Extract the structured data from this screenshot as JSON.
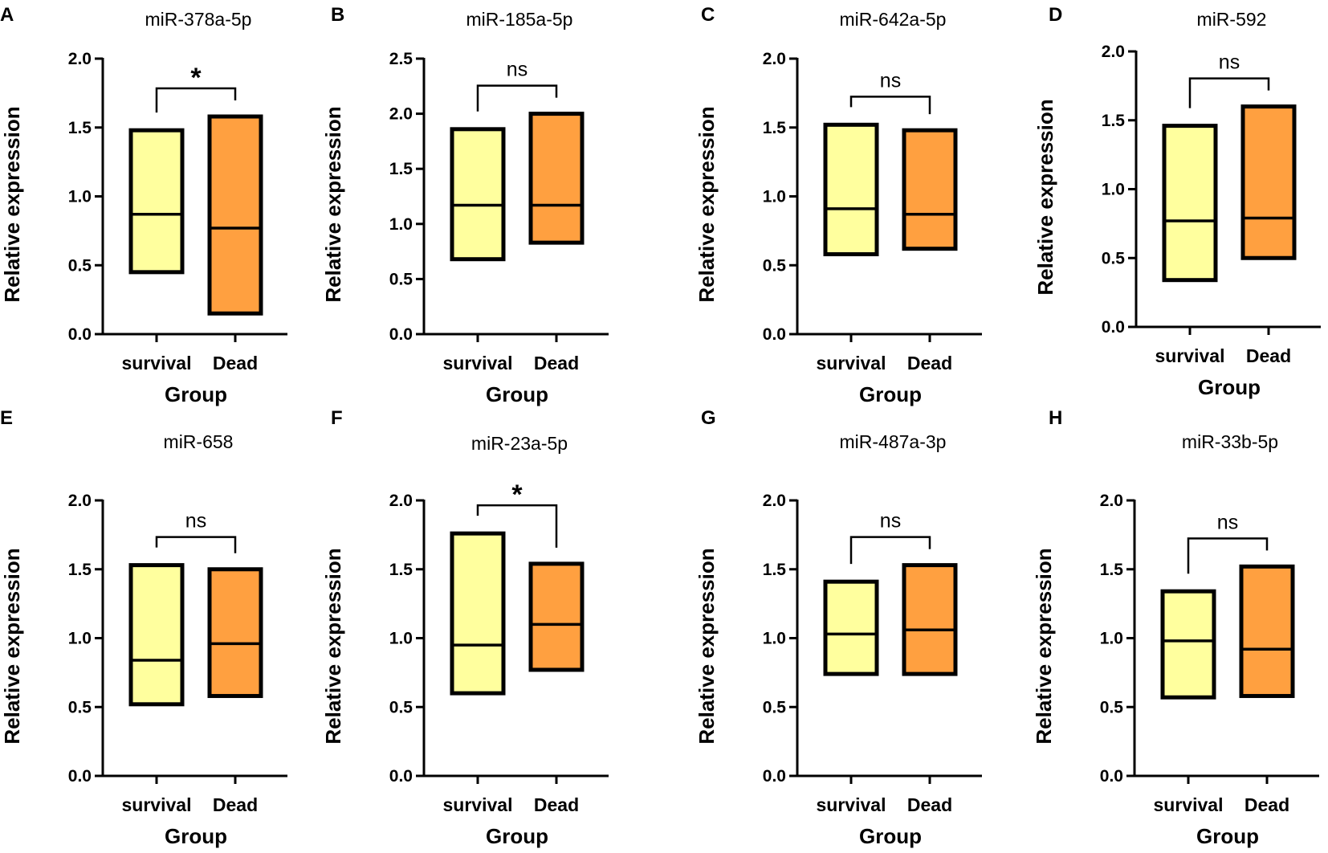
{
  "figure": {
    "colors": {
      "survival": "#FFFF9E",
      "dead": "#FFA040",
      "stroke": "#000000"
    }
  },
  "chart_data": [
    {
      "panel": "A",
      "type": "box",
      "title": "miR-378a-5p",
      "xlabel": "Group",
      "ylabel": "Relative expression",
      "categories": [
        "survival",
        "Dead"
      ],
      "ylim": [
        0,
        2.0
      ],
      "yticks": [
        "0.0",
        "0.5",
        "1.0",
        "1.5",
        "2.0"
      ],
      "series": [
        {
          "name": "survival",
          "min": 0.45,
          "median": 0.87,
          "max": 1.48
        },
        {
          "name": "Dead",
          "min": 0.15,
          "median": 0.77,
          "max": 1.58
        }
      ],
      "significance": "*"
    },
    {
      "panel": "B",
      "type": "box",
      "title": "miR-185a-5p",
      "xlabel": "Group",
      "ylabel": "Relative expression",
      "categories": [
        "survival",
        "Dead"
      ],
      "ylim": [
        0,
        2.5
      ],
      "yticks": [
        "0.0",
        "0.5",
        "1.0",
        "1.5",
        "2.0",
        "2.5"
      ],
      "series": [
        {
          "name": "survival",
          "min": 0.68,
          "median": 1.17,
          "max": 1.86
        },
        {
          "name": "Dead",
          "min": 0.83,
          "median": 1.17,
          "max": 2.0
        }
      ],
      "significance": "ns"
    },
    {
      "panel": "C",
      "type": "box",
      "title": "miR-642a-5p",
      "xlabel": "Group",
      "ylabel": "Relative expression",
      "categories": [
        "survival",
        "Dead"
      ],
      "ylim": [
        0,
        2.0
      ],
      "yticks": [
        "0.0",
        "0.5",
        "1.0",
        "1.5",
        "2.0"
      ],
      "series": [
        {
          "name": "survival",
          "min": 0.58,
          "median": 0.91,
          "max": 1.52
        },
        {
          "name": "Dead",
          "min": 0.62,
          "median": 0.87,
          "max": 1.48
        }
      ],
      "significance": "ns"
    },
    {
      "panel": "D",
      "type": "box",
      "title": "miR-592",
      "xlabel": "Group",
      "ylabel": "Relative expression",
      "categories": [
        "survival",
        "Dead"
      ],
      "ylim": [
        0,
        2.0
      ],
      "yticks": [
        "0.0",
        "0.5",
        "1.0",
        "1.5",
        "2.0"
      ],
      "series": [
        {
          "name": "survival",
          "min": 0.34,
          "median": 0.77,
          "max": 1.46
        },
        {
          "name": "Dead",
          "min": 0.5,
          "median": 0.79,
          "max": 1.6
        }
      ],
      "significance": "ns"
    },
    {
      "panel": "E",
      "type": "box",
      "title": "miR-658",
      "xlabel": "Group",
      "ylabel": "Relative expression",
      "categories": [
        "survival",
        "Dead"
      ],
      "ylim": [
        0,
        2.0
      ],
      "yticks": [
        "0.0",
        "0.5",
        "1.0",
        "1.5",
        "2.0"
      ],
      "series": [
        {
          "name": "survival",
          "min": 0.52,
          "median": 0.84,
          "max": 1.53
        },
        {
          "name": "Dead",
          "min": 0.58,
          "median": 0.96,
          "max": 1.5
        }
      ],
      "significance": "ns"
    },
    {
      "panel": "F",
      "type": "box",
      "title": "miR-23a-5p",
      "xlabel": "Group",
      "ylabel": "Relative expression",
      "categories": [
        "survival",
        "Dead"
      ],
      "ylim": [
        0,
        2.0
      ],
      "yticks": [
        "0.0",
        "0.5",
        "1.0",
        "1.5",
        "2.0"
      ],
      "series": [
        {
          "name": "survival",
          "min": 0.6,
          "median": 0.95,
          "max": 1.76
        },
        {
          "name": "Dead",
          "min": 0.77,
          "median": 1.1,
          "max": 1.54
        }
      ],
      "significance": "*"
    },
    {
      "panel": "G",
      "type": "box",
      "title": "miR-487a-3p",
      "xlabel": "Group",
      "ylabel": "Relative expression",
      "categories": [
        "survival",
        "Dead"
      ],
      "ylim": [
        0,
        2.0
      ],
      "yticks": [
        "0.0",
        "0.5",
        "1.0",
        "1.5",
        "2.0"
      ],
      "series": [
        {
          "name": "survival",
          "min": 0.74,
          "median": 1.03,
          "max": 1.41
        },
        {
          "name": "Dead",
          "min": 0.74,
          "median": 1.06,
          "max": 1.53
        }
      ],
      "significance": "ns"
    },
    {
      "panel": "H",
      "type": "box",
      "title": "miR-33b-5p",
      "xlabel": "Group",
      "ylabel": "Relative expression",
      "categories": [
        "survival",
        "Dead"
      ],
      "ylim": [
        0,
        2.0
      ],
      "yticks": [
        "0.0",
        "0.5",
        "1.0",
        "1.5",
        "2.0"
      ],
      "series": [
        {
          "name": "survival",
          "min": 0.57,
          "median": 0.98,
          "max": 1.34
        },
        {
          "name": "Dead",
          "min": 0.58,
          "median": 0.92,
          "max": 1.52
        }
      ],
      "significance": "ns"
    }
  ]
}
